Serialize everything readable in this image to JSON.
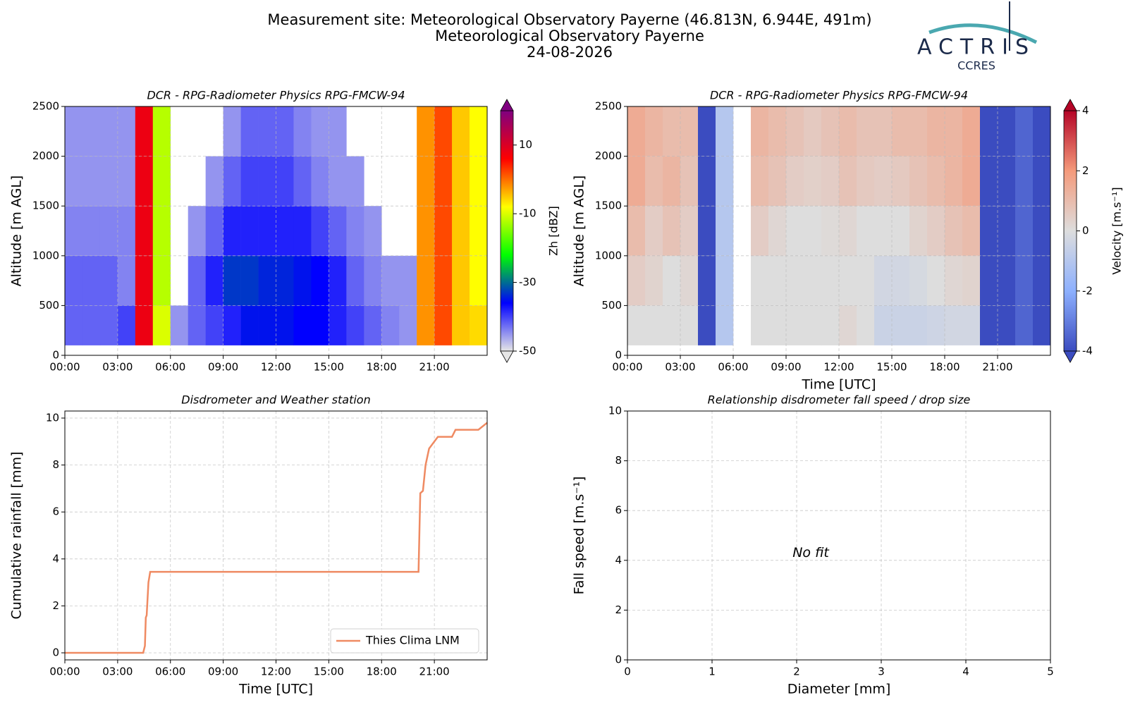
{
  "header": {
    "title": "Measurement site: Meteorological Observatory Payerne (46.813N, 6.944E, 491m)",
    "subtitle": "Meteorological Observatory Payerne",
    "date": "24-08-2026",
    "logo": {
      "name": "ACTRIS",
      "sub": "CCRES"
    }
  },
  "chart_data": [
    {
      "type": "heatmap",
      "title": "DCR - RPG-Radiometer Physics RPG-FMCW-94",
      "ylabel": "Altitude [m AGL]",
      "xlim": [
        0,
        24
      ],
      "ylim": [
        0,
        2500
      ],
      "xticks": [
        {
          "value": 0,
          "label": "00:00"
        },
        {
          "value": 3,
          "label": "03:00"
        },
        {
          "value": 6,
          "label": "06:00"
        },
        {
          "value": 9,
          "label": "09:00"
        },
        {
          "value": 12,
          "label": "12:00"
        },
        {
          "value": 15,
          "label": "15:00"
        },
        {
          "value": 18,
          "label": "18:00"
        },
        {
          "value": 21,
          "label": "21:00"
        }
      ],
      "yticks": [
        0,
        500,
        1000,
        1500,
        2000,
        2500
      ],
      "grid": true,
      "xbins": [
        0,
        1,
        2,
        3,
        4,
        5,
        6,
        7,
        8,
        9,
        10,
        11,
        12,
        13,
        14,
        15,
        16,
        17,
        18,
        19,
        20,
        21,
        22,
        23,
        24
      ],
      "ybins": [
        100,
        500,
        1000,
        1500,
        2000,
        2500
      ],
      "z": [
        [
          -42,
          -42,
          -42,
          -40,
          8,
          -10,
          -45,
          -42,
          -40,
          -38,
          -35,
          -35,
          -35,
          -36,
          -36,
          -38,
          -40,
          -42,
          -44,
          -45,
          -2,
          2,
          -5,
          -6
        ],
        [
          -42,
          -42,
          -42,
          -44,
          8,
          -12,
          null,
          -42,
          -38,
          -33,
          -33,
          -34,
          -34,
          -35,
          -36,
          -38,
          -42,
          -44,
          -45,
          -45,
          -2,
          2,
          -5,
          -8
        ],
        [
          -44,
          -44,
          -44,
          -44,
          8,
          -12,
          null,
          -45,
          -42,
          -38,
          -38,
          -38,
          -38,
          -38,
          -40,
          -42,
          -44,
          -45,
          null,
          null,
          -2,
          2,
          -5,
          -8
        ],
        [
          -45,
          -45,
          -45,
          -45,
          8,
          -12,
          null,
          null,
          -45,
          -42,
          -40,
          -40,
          -40,
          -42,
          -44,
          -45,
          -45,
          null,
          null,
          null,
          -2,
          2,
          -5,
          -8
        ],
        [
          -45,
          -45,
          -45,
          -45,
          8,
          -12,
          null,
          null,
          null,
          -45,
          -42,
          -42,
          -42,
          -44,
          -45,
          -45,
          null,
          null,
          null,
          null,
          -2,
          2,
          -5,
          -8
        ]
      ],
      "clim": [
        -50,
        20
      ],
      "cticks": [
        -50,
        -30,
        -10,
        10
      ],
      "clabel": "Zh [dBZ]",
      "colorscale": [
        "#e6e6e6",
        "#0000ff",
        "#00ff00",
        "#ffff00",
        "#ff0000",
        "#800080"
      ]
    },
    {
      "type": "heatmap",
      "title": "DCR - RPG-Radiometer Physics RPG-FMCW-94",
      "xlabel": "Time [UTC]",
      "ylabel": "Altitude [m AGL]",
      "xlim": [
        0,
        24
      ],
      "ylim": [
        0,
        2500
      ],
      "xticks": [
        {
          "value": 0,
          "label": "00:00"
        },
        {
          "value": 3,
          "label": "03:00"
        },
        {
          "value": 6,
          "label": "06:00"
        },
        {
          "value": 9,
          "label": "09:00"
        },
        {
          "value": 12,
          "label": "12:00"
        },
        {
          "value": 15,
          "label": "15:00"
        },
        {
          "value": 18,
          "label": "18:00"
        },
        {
          "value": 21,
          "label": "21:00"
        }
      ],
      "yticks": [
        0,
        500,
        1000,
        1500,
        2000,
        2500
      ],
      "grid": true,
      "xbins": [
        0,
        1,
        2,
        3,
        4,
        5,
        6,
        7,
        8,
        9,
        10,
        11,
        12,
        13,
        14,
        15,
        16,
        17,
        18,
        19,
        20,
        21,
        22,
        23,
        24
      ],
      "ybins": [
        100,
        500,
        1000,
        1500,
        2000,
        2500
      ],
      "z": [
        [
          0,
          0,
          0,
          0,
          -4,
          -1,
          null,
          0,
          0,
          0,
          0,
          0,
          0.2,
          0,
          -0.5,
          -0.5,
          -0.5,
          -0.4,
          -0.3,
          -0.3,
          -4,
          -4,
          -3.5,
          -4
        ],
        [
          0.5,
          0.3,
          0,
          0.2,
          -4,
          -1,
          null,
          0,
          0,
          0,
          0,
          0,
          0,
          0,
          -0.3,
          -0.3,
          -0.2,
          0,
          0.2,
          0.3,
          -4,
          -4,
          -3.5,
          -4
        ],
        [
          1,
          0.5,
          0.8,
          0.5,
          -4,
          -1,
          null,
          0.5,
          0.2,
          0,
          0,
          0.1,
          0.2,
          0,
          0,
          0,
          0.3,
          0.5,
          0.8,
          1,
          -4,
          -4,
          -3.5,
          -4
        ],
        [
          1.5,
          1,
          1.2,
          0.8,
          -4,
          -1,
          null,
          1,
          0.8,
          0.5,
          0.4,
          0.5,
          0.8,
          0.6,
          0.5,
          0.6,
          0.8,
          1,
          1.2,
          1.5,
          -4,
          -4,
          -3.5,
          -4
        ],
        [
          1.5,
          1.2,
          1,
          1,
          -4,
          -1,
          null,
          1.2,
          1,
          0.8,
          0.6,
          0.8,
          1,
          0.8,
          0.8,
          1,
          1,
          1.2,
          1.2,
          1.5,
          -4,
          -4,
          -3.5,
          -4
        ]
      ],
      "clim": [
        -4,
        4
      ],
      "cticks": [
        -4,
        -2,
        0,
        2,
        4
      ],
      "clabel": "Velocity [m.s⁻¹]",
      "colorscale": [
        "#3b4cc0",
        "#8db0fe",
        "#dddddd",
        "#f49a7b",
        "#b40426"
      ]
    },
    {
      "type": "line",
      "title": "Disdrometer and Weather station",
      "xlabel": "Time [UTC]",
      "ylabel": "Cumulative rainfall [mm]",
      "xlim": [
        0,
        24
      ],
      "ylim": [
        -0.3,
        10.3
      ],
      "xticks": [
        {
          "value": 0,
          "label": "00:00"
        },
        {
          "value": 3,
          "label": "03:00"
        },
        {
          "value": 6,
          "label": "06:00"
        },
        {
          "value": 9,
          "label": "09:00"
        },
        {
          "value": 12,
          "label": "12:00"
        },
        {
          "value": 15,
          "label": "15:00"
        },
        {
          "value": 18,
          "label": "18:00"
        },
        {
          "value": 21,
          "label": "21:00"
        }
      ],
      "yticks": [
        0,
        2,
        4,
        6,
        8,
        10
      ],
      "grid": true,
      "legend": "lower right",
      "x": [
        0,
        4.45,
        4.55,
        4.6,
        4.65,
        4.75,
        4.85,
        20.1,
        20.2,
        20.35,
        20.5,
        20.7,
        21.0,
        21.2,
        22.0,
        22.2,
        23.5,
        24
      ],
      "series": [
        {
          "name": "Thies Clima LNM",
          "color": "#ef8a62",
          "values": [
            0,
            0,
            0.3,
            1.5,
            1.6,
            3.0,
            3.45,
            3.45,
            6.8,
            6.9,
            8.0,
            8.7,
            9.0,
            9.2,
            9.2,
            9.5,
            9.5,
            9.8
          ]
        }
      ]
    },
    {
      "type": "scatter",
      "title": "Relationship disdrometer fall speed / drop size",
      "xlabel": "Diameter [mm]",
      "ylabel": "Fall speed [m.s⁻¹]",
      "xlim": [
        0,
        5
      ],
      "ylim": [
        0,
        10
      ],
      "xticks": [
        0,
        1,
        2,
        3,
        4,
        5
      ],
      "yticks": [
        0,
        2,
        4,
        6,
        8,
        10
      ],
      "grid": true,
      "annotation": "No fit"
    }
  ]
}
